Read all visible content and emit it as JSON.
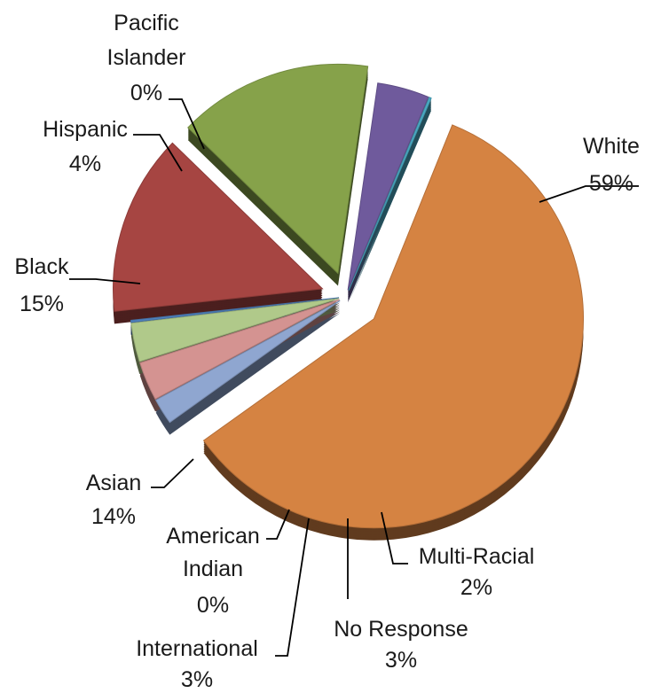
{
  "chart_data": {
    "type": "pie",
    "title": "",
    "slices": [
      {
        "name": "White",
        "value": 59,
        "label": "59%",
        "color": "#D58342"
      },
      {
        "name": "Multi-Racial",
        "value": 2,
        "label": "2%",
        "color": "#8FA6D0"
      },
      {
        "name": "No Response",
        "value": 3,
        "label": "3%",
        "color": "#D49391"
      },
      {
        "name": "International",
        "value": 3,
        "label": "3%",
        "color": "#B0C98A"
      },
      {
        "name": "American Indian",
        "value": 0,
        "label": "0%",
        "color": "#4F81BD"
      },
      {
        "name": "Asian",
        "value": 14,
        "label": "14%",
        "color": "#A64542"
      },
      {
        "name": "Black",
        "value": 15,
        "label": "15%",
        "color": "#86A24A"
      },
      {
        "name": "Hispanic",
        "value": 4,
        "label": "4%",
        "color": "#6F5A9C"
      },
      {
        "name": "Pacific Islander",
        "value": 0,
        "label": "0%",
        "color": "#4BACC6"
      }
    ],
    "legend": "none"
  }
}
